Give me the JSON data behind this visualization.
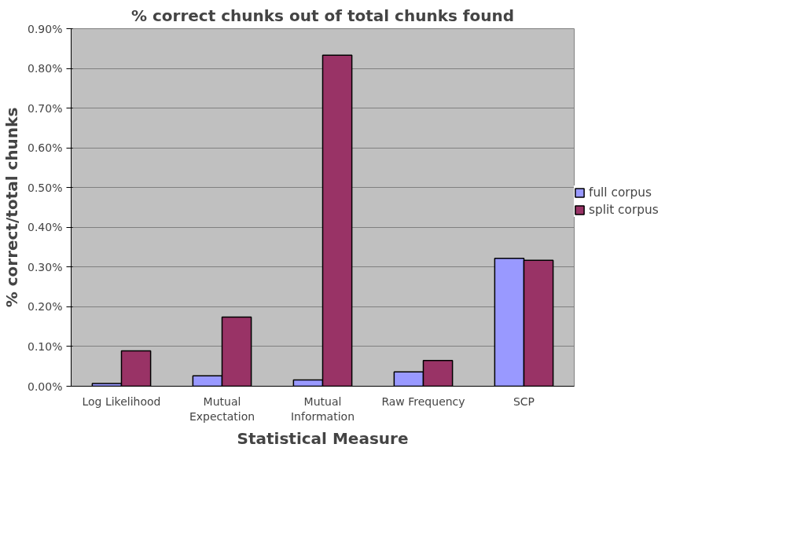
{
  "chart_data": {
    "type": "bar",
    "title": "% correct chunks out of total chunks found",
    "xlabel": "Statistical Measure",
    "ylabel": "% correct/total chunks",
    "categories": [
      "Log Likelihood",
      "Mutual\nExpectation",
      "Mutual\nInformation",
      "Raw Frequency",
      "SCP"
    ],
    "series": [
      {
        "name": "full corpus",
        "color": "#9999ff",
        "values": [
          0.007,
          0.026,
          0.016,
          0.036,
          0.322
        ]
      },
      {
        "name": "split corpus",
        "color": "#993366",
        "values": [
          0.089,
          0.174,
          0.833,
          0.065,
          0.317
        ]
      }
    ],
    "ylim": [
      0,
      0.9
    ],
    "yticks": [
      {
        "value": 0,
        "label": "0.00%"
      },
      {
        "value": 0.1,
        "label": "0.10%"
      },
      {
        "value": 0.2,
        "label": "0.20%"
      },
      {
        "value": 0.3,
        "label": "0.30%"
      },
      {
        "value": 0.4,
        "label": "0.40%"
      },
      {
        "value": 0.5,
        "label": "0.50%"
      },
      {
        "value": 0.6,
        "label": "0.60%"
      },
      {
        "value": 0.7,
        "label": "0.70%"
      },
      {
        "value": 0.8,
        "label": "0.80%"
      },
      {
        "value": 0.9,
        "label": "0.90%"
      }
    ],
    "grid": "y",
    "legend": "right"
  }
}
